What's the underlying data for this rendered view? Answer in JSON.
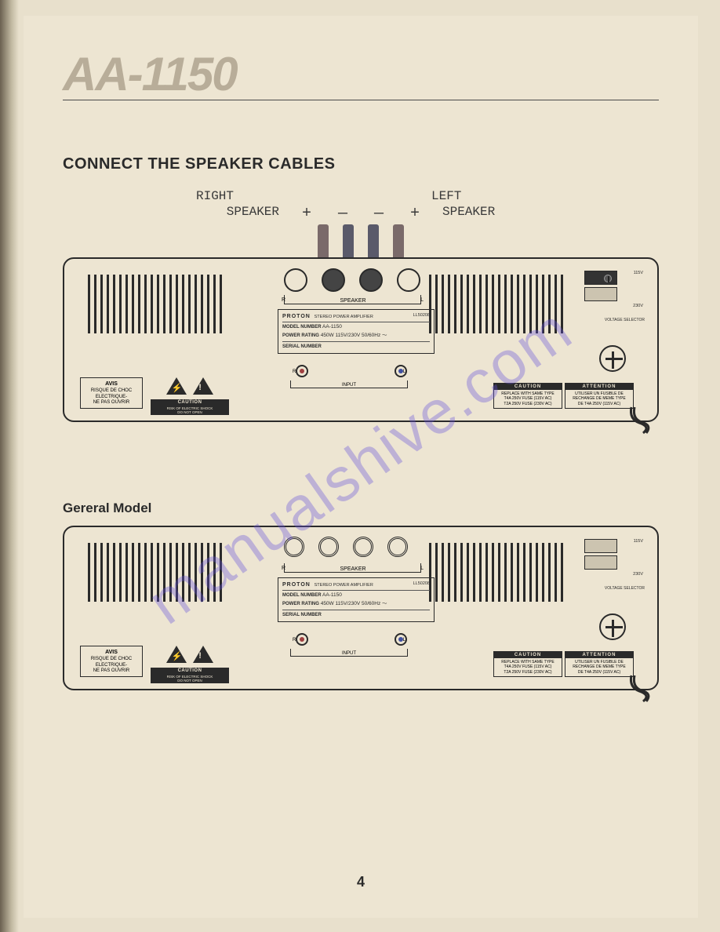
{
  "model_title": "AA-1150",
  "section_title": "CONNECT THE SPEAKER CABLES",
  "sub_title": "Gereral Model",
  "speaker_labels": {
    "right_line1": "RIGHT",
    "right_line2": "SPEAKER",
    "left_line1": "LEFT",
    "left_line2": "SPEAKER",
    "plus": "+",
    "minus": "—"
  },
  "cable_colors": [
    "#7a6a6a",
    "#5a5a6a",
    "#5a5a6a",
    "#7a6a6a"
  ],
  "panel": {
    "brand": "PROTON",
    "brand_desc": "STEREO POWER AMPLIFIER",
    "model_ref": "LL50208",
    "model_label": "MODEL NUMBER",
    "model_value": "AA-1150",
    "power_label": "POWER RATING",
    "power_value": "450W 115V/230V 50/60Hz ～",
    "serial_label": "SERIAL NUMBER",
    "speaker_bracket": "SPEAKER",
    "r_label": "R",
    "l_label": "L",
    "input_label": "INPUT",
    "voltage": {
      "v115": "115V",
      "v230": "230V",
      "selector": "VOLTAGE SELECTOR"
    },
    "avis": {
      "title": "AVIS",
      "line1": "RISQUE DE CHOC",
      "line2": "ELECTRIQUE-",
      "line3": "NE PAS OUVRIR"
    },
    "caution": {
      "title": "CAUTION",
      "line1": "RISK OF ELECTRIC SHOCK",
      "line2": "DO NOT OPEN"
    },
    "fuse_caution": {
      "title": "CAUTION",
      "line1": "REPLACE WITH SAME TYPE",
      "line2": "T4A 250V FUSE (115V AC)",
      "line3": "T2A 250V FUSE (230V AC)"
    },
    "fuse_attention": {
      "title": "ATTENTION",
      "line1": "UTILISER UN FUSIBLE DE",
      "line2": "RECHANGE DE MEME TYPE",
      "line3": "DE T4A 250V (115V AC)"
    }
  },
  "page_number": "4",
  "watermark": "manualshive.com",
  "colors": {
    "page_bg": "#ede5d2",
    "outer_bg": "#e8e0cc",
    "ink": "#2a2a2a",
    "title_gray": "#b8ad99",
    "watermark": "rgba(100,80,220,0.35)"
  }
}
